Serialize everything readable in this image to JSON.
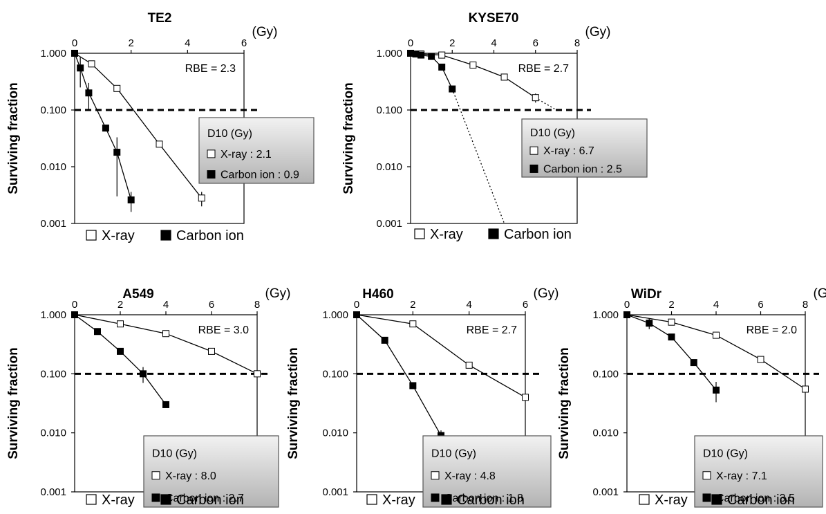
{
  "figure": {
    "axis_unit_label": "(Gy)",
    "ylabel": "Surviving fraction",
    "threshold_sf": 0.1,
    "colors": {
      "xray_marker_fill": "#ffffff",
      "carbon_marker_fill": "#000000",
      "box_top": "#f2f2f2",
      "box_bottom": "#b3b3b3"
    }
  },
  "chart_data": [
    {
      "type": "line",
      "title": "TE2",
      "xlabel": "(Gy)",
      "ylabel": "Surviving fraction",
      "xlim": [
        0,
        6
      ],
      "xticks": [
        0,
        2,
        4,
        6
      ],
      "ylim": [
        0.001,
        1
      ],
      "yscale": "log",
      "yticks": [
        "0.001",
        "0.010",
        "0.100",
        "1.000"
      ],
      "rbe": "RBE = 2.3",
      "legend": {
        "xray": "X-ray",
        "carbon": "Carbon ion"
      },
      "d10": {
        "title": "D10 (Gy)",
        "xray": "X-ray : 2.1",
        "carbon": "Carbon ion : 0.9"
      },
      "series": [
        {
          "name": "X-ray",
          "x": [
            0,
            0.6,
            1.5,
            3,
            4.5
          ],
          "y": [
            1.0,
            0.65,
            0.24,
            0.025,
            0.0028
          ],
          "err": [
            0,
            0,
            0,
            0,
            0.0008
          ]
        },
        {
          "name": "Carbon ion",
          "x": [
            0,
            0.2,
            0.5,
            1.1,
            1.5,
            2.0
          ],
          "y": [
            1.0,
            0.55,
            0.2,
            0.048,
            0.018,
            0.0026
          ],
          "err": [
            0,
            0.3,
            0.1,
            0,
            0.015,
            0.001
          ]
        }
      ],
      "extrapolated": null
    },
    {
      "type": "line",
      "title": "KYSE70",
      "xlabel": "(Gy)",
      "ylabel": "Surviving fraction",
      "xlim": [
        0,
        8
      ],
      "xticks": [
        0,
        2,
        4,
        6,
        8
      ],
      "ylim": [
        0.001,
        1
      ],
      "yscale": "log",
      "yticks": [
        "0.001",
        "0.010",
        "0.100",
        "1.000"
      ],
      "rbe": "RBE = 2.7",
      "legend": {
        "xray": "X-ray",
        "carbon": "Carbon ion"
      },
      "d10": {
        "title": "D10 (Gy)",
        "xray": "X-ray : 6.7",
        "carbon": "Carbon ion : 2.5"
      },
      "series": [
        {
          "name": "X-ray",
          "x": [
            0,
            0.5,
            1.5,
            3,
            4.5,
            6
          ],
          "y": [
            1.0,
            0.97,
            0.93,
            0.62,
            0.38,
            0.165
          ],
          "err": [
            0,
            0,
            0,
            0,
            0,
            0.03
          ]
        },
        {
          "name": "Carbon ion",
          "x": [
            0,
            0.25,
            0.5,
            1,
            1.5,
            2
          ],
          "y": [
            1.0,
            0.97,
            0.93,
            0.88,
            0.57,
            0.235
          ],
          "err": [
            0,
            0,
            0,
            0,
            0,
            0
          ]
        }
      ],
      "extrapolated": [
        {
          "from": [
            6,
            0.165
          ],
          "to": [
            7.0,
            0.1
          ]
        },
        {
          "from": [
            2,
            0.235
          ],
          "to": [
            4.5,
            0.001
          ]
        }
      ]
    },
    {
      "type": "line",
      "title": "A549",
      "xlabel": "(Gy)",
      "ylabel": "Surviving fraction",
      "xlim": [
        0,
        8
      ],
      "xticks": [
        0,
        2,
        4,
        6,
        8
      ],
      "ylim": [
        0.001,
        1
      ],
      "yscale": "log",
      "yticks": [
        "0.001",
        "0.010",
        "0.100",
        "1.000"
      ],
      "rbe": "RBE = 3.0",
      "legend": {
        "xray": "X-ray",
        "carbon": "Carbon ion"
      },
      "d10": {
        "title": "D10 (Gy)",
        "xray": "X-ray : 8.0",
        "carbon": "Carbon ion : 2.7"
      },
      "series": [
        {
          "name": "X-ray",
          "x": [
            0,
            2,
            4,
            6,
            8
          ],
          "y": [
            1.0,
            0.7,
            0.48,
            0.24,
            0.1
          ],
          "err": [
            0,
            0,
            0,
            0,
            0
          ]
        },
        {
          "name": "Carbon ion",
          "x": [
            0,
            1,
            2,
            3,
            4
          ],
          "y": [
            1.0,
            0.52,
            0.24,
            0.1,
            0.03
          ],
          "err": [
            0,
            0,
            0,
            0.03,
            0
          ]
        }
      ],
      "extrapolated": null
    },
    {
      "type": "line",
      "title": "H460",
      "xlabel": "(Gy)",
      "ylabel": "Surviving fraction",
      "xlim": [
        0,
        6
      ],
      "xticks": [
        0,
        2,
        4,
        6
      ],
      "ylim": [
        0.001,
        1
      ],
      "yscale": "log",
      "yticks": [
        "0.001",
        "0.010",
        "0.100",
        "1.000"
      ],
      "rbe": "RBE = 2.7",
      "legend": {
        "xray": "X-ray",
        "carbon": "Carbon ion"
      },
      "d10": {
        "title": "D10 (Gy)",
        "xray": "X-ray : 4.8",
        "carbon": "Carbon ion : 1.8"
      },
      "series": [
        {
          "name": "X-ray",
          "x": [
            0,
            2,
            4,
            6
          ],
          "y": [
            1.0,
            0.7,
            0.14,
            0.04
          ],
          "err": [
            0,
            0,
            0,
            0
          ]
        },
        {
          "name": "Carbon ion",
          "x": [
            0,
            1,
            2,
            3
          ],
          "y": [
            1.0,
            0.37,
            0.063,
            0.009
          ],
          "err": [
            0,
            0,
            0,
            0.002
          ]
        }
      ],
      "extrapolated": null
    },
    {
      "type": "line",
      "title": "WiDr",
      "xlabel": "(Gy)",
      "ylabel": "Surviving fraction",
      "xlim": [
        0,
        8
      ],
      "xticks": [
        0,
        2,
        4,
        6,
        8
      ],
      "ylim": [
        0.001,
        1
      ],
      "yscale": "log",
      "yticks": [
        "0.001",
        "0.010",
        "0.100",
        "1.000"
      ],
      "rbe": "RBE = 2.0",
      "legend": {
        "xray": "X-ray",
        "carbon": "Carbon ion"
      },
      "d10": {
        "title": "D10 (Gy)",
        "xray": "X-ray : 7.1",
        "carbon": "Carbon ion : 3.5"
      },
      "series": [
        {
          "name": "X-ray",
          "x": [
            0,
            2,
            4,
            6,
            8
          ],
          "y": [
            1.0,
            0.75,
            0.45,
            0.175,
            0.055
          ],
          "err": [
            0,
            0,
            0,
            0,
            0
          ]
        },
        {
          "name": "Carbon ion",
          "x": [
            0,
            1,
            2,
            3,
            4
          ],
          "y": [
            1.0,
            0.72,
            0.42,
            0.155,
            0.053
          ],
          "err": [
            0,
            0.15,
            0,
            0,
            0.02
          ]
        }
      ],
      "extrapolated": null
    }
  ]
}
